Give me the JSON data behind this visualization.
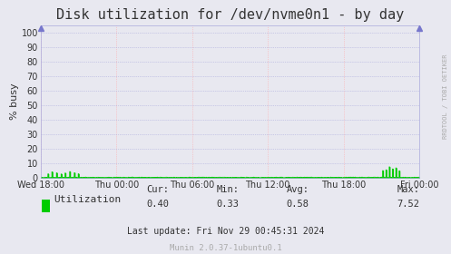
{
  "title": "Disk utilization for /dev/nvme0n1 - by day",
  "ylabel": "% busy",
  "bg_color": "#e8e8f0",
  "plot_bg_color": "#e8e8f0",
  "line_color": "#00cc00",
  "fill_color": "#00cc00",
  "grid_color_major": "#aaaadd",
  "grid_color_minor": "#ffaaaa",
  "yticks": [
    0,
    10,
    20,
    30,
    40,
    50,
    60,
    70,
    80,
    90,
    100
  ],
  "xtick_labels": [
    "Wed 18:00",
    "Thu 00:00",
    "Thu 06:00",
    "Thu 12:00",
    "Thu 18:00",
    "Fri 00:00"
  ],
  "ylim": [
    0,
    105
  ],
  "legend_label": "Utilization",
  "legend_color": "#00cc00",
  "cur_val": "0.40",
  "min_val": "0.33",
  "avg_val": "0.58",
  "max_val": "7.52",
  "footer": "Last update: Fri Nov 29 00:45:31 2024",
  "munin_version": "Munin 2.0.37-1ubuntu0.1",
  "watermark": "RRDTOOL / TOBI OETIKER",
  "spine_color": "#aaaadd",
  "title_color": "#333333",
  "num_points": 576
}
